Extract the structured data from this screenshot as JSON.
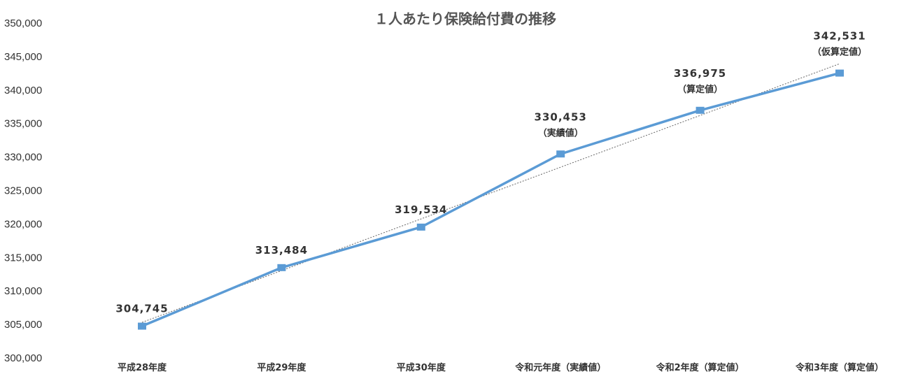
{
  "chart_data": {
    "type": "line",
    "title": "１人あたり保険給付費の推移",
    "categories": [
      "平成28年度",
      "平成29年度",
      "平成30年度",
      "令和元年度（実績値）",
      "令和2年度（算定値）",
      "令和3年度（算定値）"
    ],
    "series": [
      {
        "values": [
          304745,
          313484,
          319534,
          330453,
          336975,
          342531
        ],
        "color": "#5b9bd5"
      }
    ],
    "data_labels": [
      "304,745",
      "313,484",
      "319,534",
      "330,453",
      "336,975",
      "342,531"
    ],
    "data_notes": [
      "",
      "",
      "",
      "（実績値）",
      "（算定値）",
      "（仮算定値）"
    ],
    "ylim": [
      300000,
      350000
    ],
    "y_ticks": [
      "300,000",
      "305,000",
      "310,000",
      "315,000",
      "320,000",
      "325,000",
      "330,000",
      "335,000",
      "340,000",
      "345,000",
      "350,000"
    ],
    "trendline": {
      "style": "dotted",
      "type": "linear",
      "color": "#666666"
    },
    "grid": false,
    "legend": "none"
  }
}
